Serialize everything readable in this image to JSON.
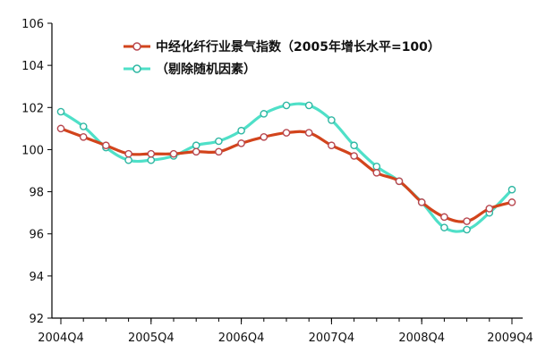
{
  "chart_data": {
    "type": "line",
    "x": [
      "2004Q4",
      "2005Q1",
      "2005Q2",
      "2005Q3",
      "2005Q4",
      "2006Q1",
      "2006Q2",
      "2006Q3",
      "2006Q4",
      "2007Q1",
      "2007Q2",
      "2007Q3",
      "2007Q4",
      "2008Q1",
      "2008Q2",
      "2008Q3",
      "2008Q4",
      "2009Q1",
      "2009Q2",
      "2009Q3",
      "2009Q4"
    ],
    "x_tick_labels": [
      "2004Q4",
      "2005Q4",
      "2006Q4",
      "2007Q4",
      "2008Q4",
      "2009Q4"
    ],
    "y_tick_labels": [
      "92",
      "94",
      "96",
      "98",
      "100",
      "102",
      "104",
      "106"
    ],
    "ylim": [
      92,
      106
    ],
    "grid": false,
    "legend_placement": "top",
    "series": [
      {
        "name": "中经化纤行业景气指数（2005年增长水平=100）",
        "color": "#d2441c",
        "marker_fill": "#ffffff",
        "marker_stroke": "#b8474f",
        "values": [
          101.0,
          100.6,
          100.2,
          99.8,
          99.8,
          99.8,
          99.9,
          99.9,
          100.3,
          100.6,
          100.8,
          100.8,
          100.2,
          99.7,
          98.9,
          98.5,
          97.5,
          96.8,
          96.6,
          97.2,
          97.5
        ]
      },
      {
        "name": "（剔除随机因素）",
        "color": "#4fe0c8",
        "marker_fill": "#ffffff",
        "marker_stroke": "#2fb7a3",
        "values": [
          101.8,
          101.1,
          100.1,
          99.5,
          99.5,
          99.7,
          100.2,
          100.4,
          100.9,
          101.7,
          102.1,
          102.1,
          101.4,
          100.2,
          99.2,
          98.5,
          97.5,
          96.3,
          96.2,
          97.0,
          98.1
        ]
      }
    ]
  }
}
